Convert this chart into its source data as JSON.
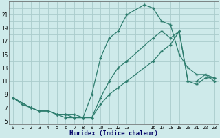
{
  "xlabel": "Humidex (Indice chaleur)",
  "bg_color": "#ceeaea",
  "grid_color": "#aacccc",
  "line_color": "#2e7d6e",
  "xlim": [
    -0.5,
    23.5
  ],
  "ylim": [
    4.5,
    23.0
  ],
  "xtick_vals": [
    0,
    1,
    2,
    3,
    4,
    5,
    6,
    7,
    8,
    9,
    10,
    11,
    12,
    13,
    16,
    17,
    18,
    19,
    20,
    21,
    22,
    23
  ],
  "ytick_vals": [
    5,
    7,
    9,
    11,
    13,
    15,
    17,
    19,
    21
  ],
  "series": [
    {
      "x": [
        0,
        1,
        2,
        3,
        4,
        5,
        6,
        7,
        8,
        9,
        10,
        11,
        12,
        13,
        15,
        16,
        17,
        18,
        19,
        20,
        21,
        22,
        23
      ],
      "y": [
        8.5,
        7.5,
        7.0,
        6.5,
        6.5,
        6.0,
        5.5,
        5.5,
        5.5,
        9.0,
        14.5,
        17.5,
        18.5,
        21.0,
        22.5,
        22.0,
        20.0,
        19.5,
        15.0,
        13.0,
        12.0,
        12.0,
        11.0
      ]
    },
    {
      "x": [
        0,
        2,
        3,
        4,
        5,
        6,
        7,
        8,
        9,
        10,
        11,
        12,
        13,
        16,
        17,
        18,
        19,
        20,
        21,
        22,
        23
      ],
      "y": [
        8.5,
        7.0,
        6.5,
        6.5,
        6.0,
        6.0,
        6.0,
        5.5,
        5.5,
        8.5,
        11.0,
        13.0,
        14.0,
        17.5,
        18.5,
        17.5,
        18.5,
        11.0,
        11.0,
        12.0,
        11.5
      ]
    },
    {
      "x": [
        0,
        2,
        3,
        4,
        5,
        6,
        7,
        8,
        9,
        10,
        11,
        12,
        13,
        16,
        17,
        18,
        19,
        20,
        21,
        22,
        23
      ],
      "y": [
        8.5,
        7.0,
        6.5,
        6.5,
        6.0,
        6.0,
        5.5,
        5.5,
        5.5,
        7.5,
        9.0,
        10.0,
        11.0,
        14.0,
        15.5,
        16.5,
        18.5,
        11.0,
        10.5,
        11.5,
        11.5
      ]
    }
  ]
}
